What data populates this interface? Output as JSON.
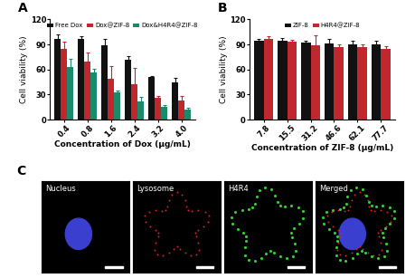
{
  "chart_data": [
    {
      "type": "bar",
      "title": "A",
      "x_label": "Concentration of Dox (μg/mL)",
      "y_label": "Cell viability (%)",
      "categories": [
        "0.4",
        "0.8",
        "1.6",
        "2.4",
        "3.2",
        "4.0"
      ],
      "series": [
        {
          "name": "Free Dox",
          "color": "#111111",
          "values": [
            97,
            97,
            89,
            72,
            51,
            45
          ],
          "errors": [
            5,
            3,
            8,
            4,
            1,
            5
          ]
        },
        {
          "name": "Dox@ZIF-8",
          "color": "#c0282d",
          "values": [
            85,
            70,
            49,
            42,
            26,
            23
          ],
          "errors": [
            8,
            10,
            15,
            20,
            2,
            5
          ]
        },
        {
          "name": "Dox&H4R4@ZIF-8",
          "color": "#1a8a6a",
          "values": [
            63,
            56,
            33,
            22,
            15,
            12
          ],
          "errors": [
            10,
            5,
            2,
            5,
            2,
            2
          ]
        }
      ],
      "ylim": [
        0,
        120
      ],
      "yticks": [
        0,
        30,
        60,
        90,
        120
      ],
      "legend": "upper center"
    },
    {
      "type": "bar",
      "title": "B",
      "x_label": "Concentration of ZIF-8 (μg/mL)",
      "y_label": "Cell viability (%)",
      "categories": [
        "7.8",
        "15.5",
        "31.2",
        "46.6",
        "62.1",
        "77.7"
      ],
      "series": [
        {
          "name": "ZIF-8",
          "color": "#111111",
          "values": [
            94,
            95,
            92,
            91,
            90,
            90
          ],
          "errors": [
            3,
            3,
            3,
            6,
            5,
            5
          ]
        },
        {
          "name": "H4R4@ZIF-8",
          "color": "#c0282d",
          "values": [
            97,
            93,
            89,
            87,
            87,
            85
          ],
          "errors": [
            3,
            3,
            12,
            3,
            3,
            3
          ]
        }
      ],
      "ylim": [
        0,
        120
      ],
      "yticks": [
        0,
        30,
        60,
        90,
        120
      ],
      "legend": "upper center"
    }
  ],
  "image_panel": {
    "title": "C",
    "panels": [
      "Nucleus",
      "Lysosome",
      "H4R4",
      "Merged"
    ]
  }
}
